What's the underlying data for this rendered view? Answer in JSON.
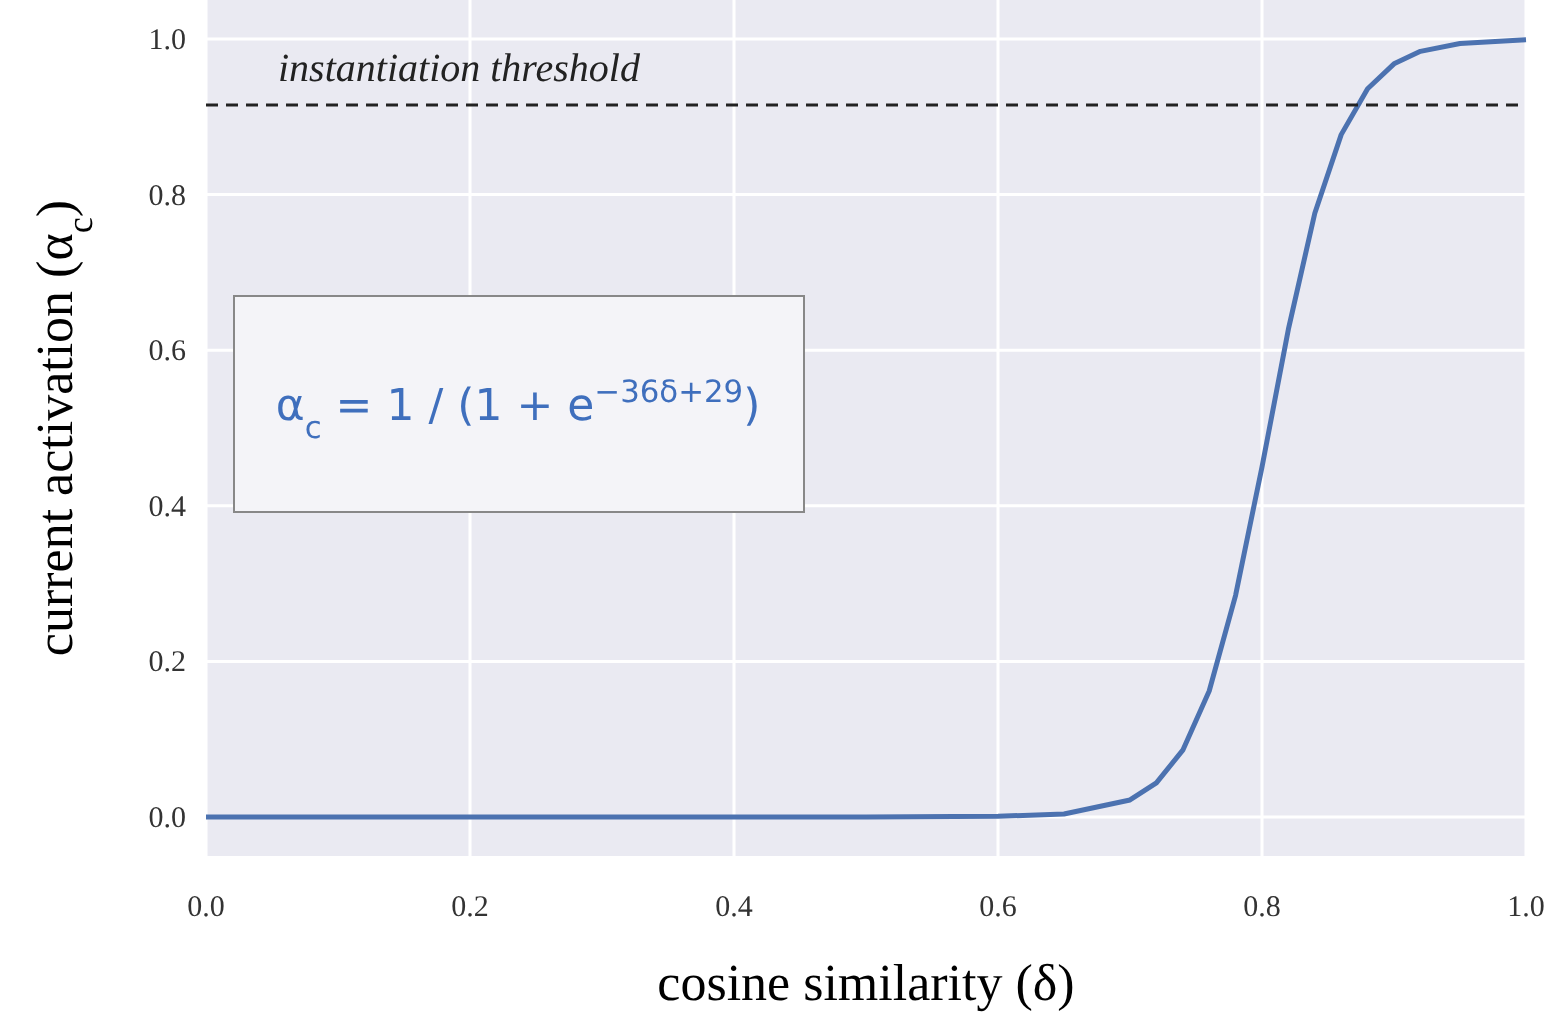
{
  "chart_data": {
    "type": "line",
    "xlabel": "cosine similarity (δ)",
    "ylabel": "current activation (α$_{c}$)",
    "x": [
      0,
      0.1,
      0.2,
      0.3,
      0.4,
      0.5,
      0.6,
      0.65,
      0.7,
      0.72,
      0.74,
      0.76,
      0.78,
      0.8,
      0.82,
      0.84,
      0.86,
      0.88,
      0.9,
      0.92,
      0.95,
      1.0
    ],
    "series": [
      {
        "color": "#4c72b0",
        "values": [
          0,
          0,
          0,
          0,
          0,
          0,
          0.001,
          0.004,
          0.022,
          0.044,
          0.086,
          0.162,
          0.285,
          0.45,
          0.627,
          0.776,
          0.877,
          0.936,
          0.968,
          0.984,
          0.994,
          0.999
        ]
      }
    ],
    "xlim": [
      0,
      1
    ],
    "ylim": [
      -0.05,
      1.05
    ],
    "xticks": [
      {
        "value": 0,
        "label": "0.0"
      },
      {
        "value": 0.2,
        "label": "0.2"
      },
      {
        "value": 0.4,
        "label": "0.4"
      },
      {
        "value": 0.6,
        "label": "0.6"
      },
      {
        "value": 0.8,
        "label": "0.8"
      },
      {
        "value": 1,
        "label": "1.0"
      }
    ],
    "yticks": [
      {
        "value": 0,
        "label": "0.0"
      },
      {
        "value": 0.2,
        "label": "0.2"
      },
      {
        "value": 0.4,
        "label": "0.4"
      },
      {
        "value": 0.6,
        "label": "0.6"
      },
      {
        "value": 0.8,
        "label": "0.8"
      },
      {
        "value": 1,
        "label": "1.0"
      }
    ],
    "grid": true,
    "marker": "none",
    "line_style": "solid",
    "ref_lines": [
      {
        "axis": "y",
        "value": 0.915,
        "label": "instantiation threshold",
        "color": "#222222",
        "line_style": "dashed"
      }
    ],
    "annotations": [
      "α$_{c}$ = 1 / (1 + e$^{−36δ+29}$)"
    ]
  }
}
